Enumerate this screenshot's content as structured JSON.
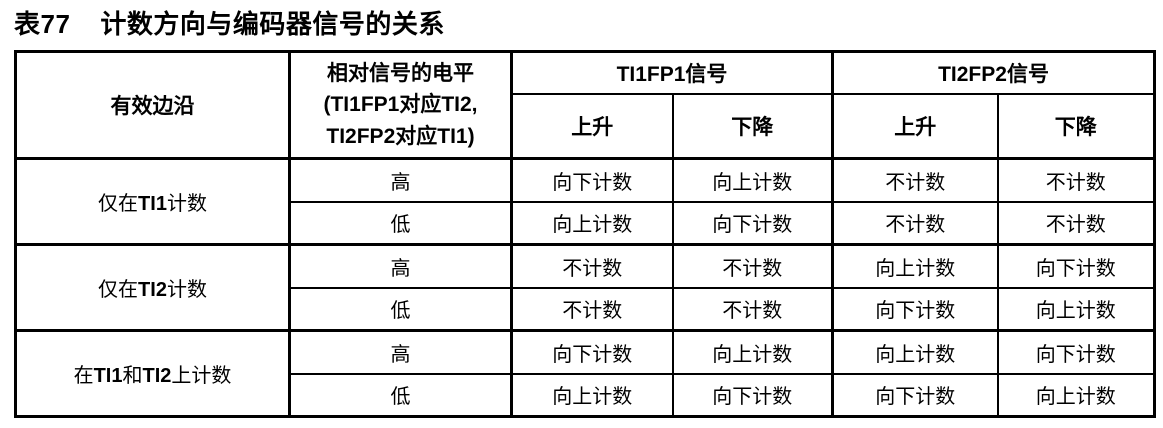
{
  "page": {
    "background": "#ffffff",
    "text_color": "#000000",
    "border_color": "#000000"
  },
  "title": {
    "prefix": "表77",
    "text": "计数方向与编码器信号的关系"
  },
  "table": {
    "header": {
      "active_edge": "有效边沿",
      "relative_level": "相对信号的电平\n(TI1FP1对应TI2,\nTI2FP2对应TI1)",
      "group_ti1fp1": "TI1FP1信号",
      "group_ti2fp2": "TI2FP2信号",
      "sub": {
        "ti1fp1_rising": "上升",
        "ti1fp1_falling": "下降",
        "ti2fp2_rising": "上升",
        "ti2fp2_falling": "下降"
      }
    },
    "rows": [
      {
        "edge": "仅在TI1计数",
        "level": "高",
        "ti1fp1_rising": "向下计数",
        "ti1fp1_falling": "向上计数",
        "ti2fp2_rising": "不计数",
        "ti2fp2_falling": "不计数"
      },
      {
        "level": "低",
        "ti1fp1_rising": "向上计数",
        "ti1fp1_falling": "向下计数",
        "ti2fp2_rising": "不计数",
        "ti2fp2_falling": "不计数"
      },
      {
        "edge": "仅在TI2计数",
        "level": "高",
        "ti1fp1_rising": "不计数",
        "ti1fp1_falling": "不计数",
        "ti2fp2_rising": "向上计数",
        "ti2fp2_falling": "向下计数"
      },
      {
        "level": "低",
        "ti1fp1_rising": "不计数",
        "ti1fp1_falling": "不计数",
        "ti2fp2_rising": "向下计数",
        "ti2fp2_falling": "向上计数"
      },
      {
        "edge": "在TI1和TI2上计数",
        "level": "高",
        "ti1fp1_rising": "向下计数",
        "ti1fp1_falling": "向上计数",
        "ti2fp2_rising": "向上计数",
        "ti2fp2_falling": "向下计数"
      },
      {
        "level": "低",
        "ti1fp1_rising": "向上计数",
        "ti1fp1_falling": "向下计数",
        "ti2fp2_rising": "向下计数",
        "ti2fp2_falling": "向上计数"
      }
    ]
  }
}
